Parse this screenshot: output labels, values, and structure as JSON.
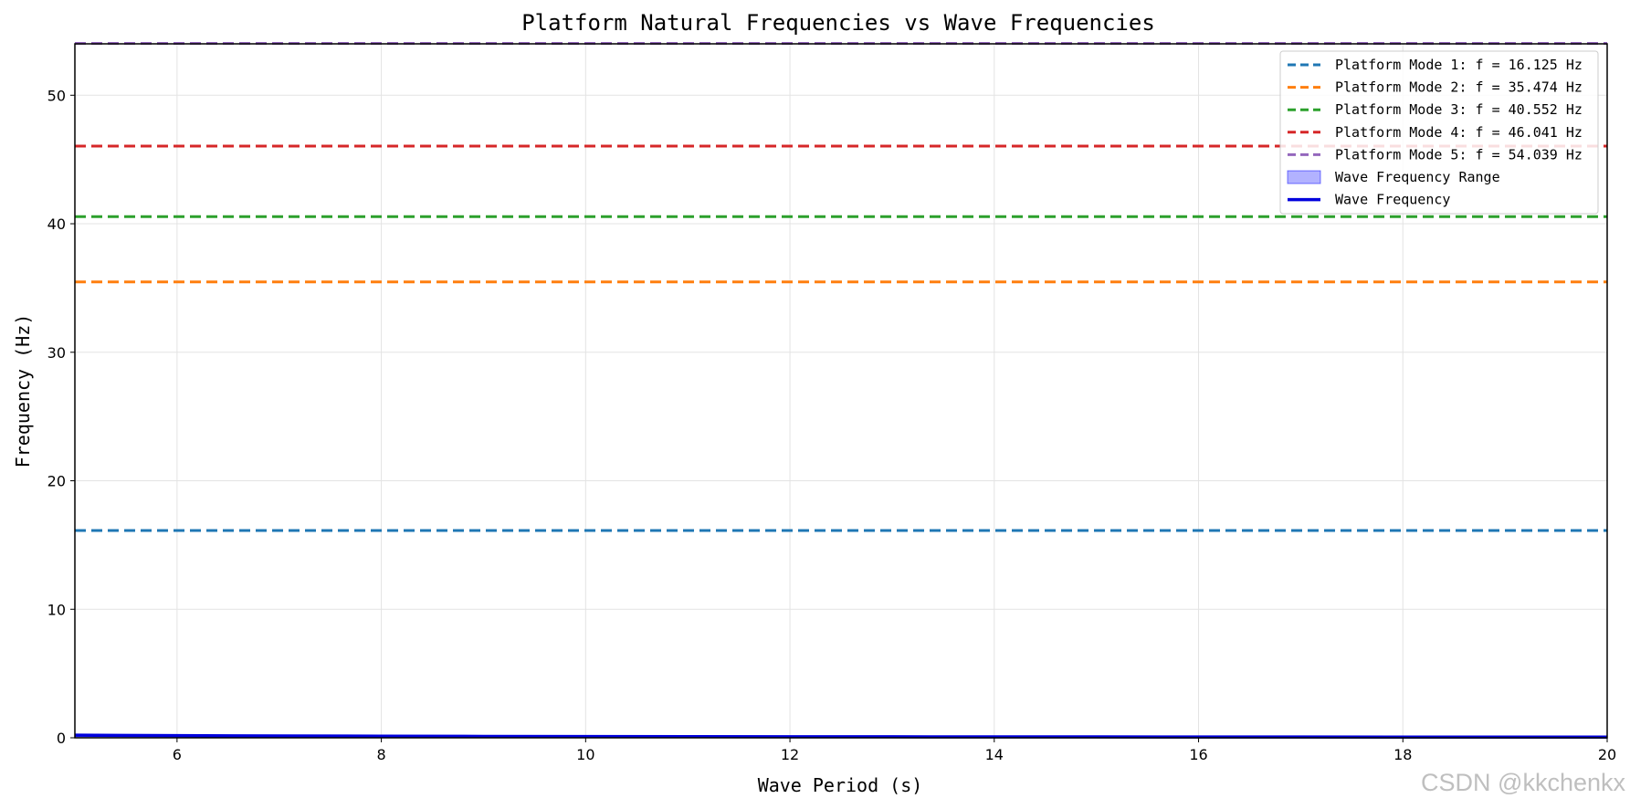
{
  "chart_data": {
    "type": "line",
    "title": "Platform Natural Frequencies vs Wave Frequencies",
    "xlabel": "Wave Period (s)",
    "ylabel": "Frequency (Hz)",
    "xlim": [
      5,
      20
    ],
    "ylim": [
      0,
      54
    ],
    "xticks": [
      6,
      8,
      10,
      12,
      14,
      16,
      18,
      20
    ],
    "yticks": [
      0,
      10,
      20,
      30,
      40,
      50
    ],
    "grid": true,
    "legend_position": "top-right",
    "modes": [
      {
        "name": "Platform Mode 1: f = 16.125 Hz",
        "value": 16.125,
        "color": "#1f77b4"
      },
      {
        "name": "Platform Mode 2: f = 35.474 Hz",
        "value": 35.474,
        "color": "#ff7f0e"
      },
      {
        "name": "Platform Mode 3: f = 40.552 Hz",
        "value": 40.552,
        "color": "#2ca02c"
      },
      {
        "name": "Platform Mode 4: f = 46.041 Hz",
        "value": 46.041,
        "color": "#d62728"
      },
      {
        "name": "Platform Mode 5: f = 54.039 Hz",
        "value": 54.039,
        "color": "#9467bd"
      }
    ],
    "wave_range": {
      "name": "Wave Frequency Range",
      "color": "#0000ff"
    },
    "wave_series": {
      "name": "Wave Frequency",
      "color": "#0000dd",
      "x": [
        5,
        6,
        7,
        8,
        9,
        10,
        11,
        12,
        13,
        14,
        15,
        16,
        17,
        18,
        19,
        20
      ],
      "y": [
        0.2,
        0.167,
        0.143,
        0.125,
        0.111,
        0.1,
        0.091,
        0.083,
        0.077,
        0.071,
        0.067,
        0.0625,
        0.059,
        0.056,
        0.053,
        0.05
      ]
    }
  },
  "watermark": "CSDN @kkchenkx"
}
